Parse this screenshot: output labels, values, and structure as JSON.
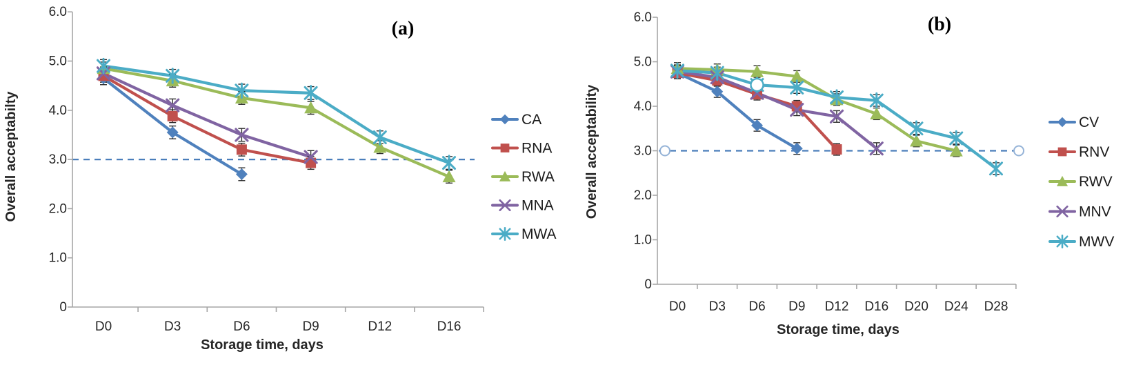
{
  "figure": {
    "background": "#ffffff"
  },
  "chart_data": [
    {
      "id": "a",
      "type": "line",
      "corner_label": "(a)",
      "xlabel": "Storage time, days",
      "ylabel": "Overall acceptabilty",
      "ylim": [
        0,
        6
      ],
      "ytick_labels": [
        "6.0",
        "5.0",
        "4.0",
        "3.0",
        "2.0",
        "1.0",
        "0"
      ],
      "ytick_values": [
        6,
        5,
        4,
        3,
        2,
        1,
        0
      ],
      "categories": [
        "D0",
        "D3",
        "D6",
        "D9",
        "D12",
        "D16"
      ],
      "grid": false,
      "legend_position": "right",
      "error_bar": 0.13,
      "threshold": {
        "value": 3.0,
        "style": "dashed",
        "color": "#4A7EBB",
        "end_circles": false
      },
      "series": [
        {
          "name": "CA",
          "color": "#4F81BD",
          "marker": "diamond",
          "values": [
            4.65,
            3.55,
            2.7,
            null,
            null,
            null
          ]
        },
        {
          "name": "RNA",
          "color": "#C0504D",
          "marker": "square",
          "values": [
            4.7,
            3.88,
            3.2,
            2.93,
            null,
            null
          ]
        },
        {
          "name": "RWA",
          "color": "#9BBB59",
          "marker": "triangle",
          "values": [
            4.85,
            4.6,
            4.25,
            4.05,
            3.25,
            2.65
          ]
        },
        {
          "name": "MNA",
          "color": "#8064A2",
          "marker": "x",
          "values": [
            4.75,
            4.1,
            3.5,
            3.05,
            null,
            null
          ]
        },
        {
          "name": "MWA",
          "color": "#4BACC6",
          "marker": "asterisk",
          "values": [
            4.9,
            4.7,
            4.4,
            4.35,
            3.45,
            2.93
          ]
        }
      ],
      "annotations": []
    },
    {
      "id": "b",
      "type": "line",
      "corner_label": "(b)",
      "xlabel": "Storage time, days",
      "ylabel": "Overall acceptability",
      "ylim": [
        0,
        6
      ],
      "ytick_labels": [
        "6.0",
        "5.0",
        "4.0",
        "3.0",
        "2.0",
        "1.0",
        "0"
      ],
      "ytick_values": [
        6,
        5,
        4,
        3,
        2,
        1,
        0
      ],
      "categories": [
        "D0",
        "D3",
        "D6",
        "D9",
        "D12",
        "D16",
        "D20",
        "D24",
        "D28"
      ],
      "grid": false,
      "legend_position": "right",
      "error_bar": 0.13,
      "threshold": {
        "value": 3.0,
        "style": "dashed",
        "color": "#4A7EBB",
        "end_circles": true
      },
      "series": [
        {
          "name": "CV",
          "color": "#4F81BD",
          "marker": "diamond",
          "values": [
            4.75,
            4.33,
            3.57,
            3.05,
            null,
            null,
            null,
            null,
            null
          ]
        },
        {
          "name": "RNV",
          "color": "#C0504D",
          "marker": "square",
          "values": [
            4.75,
            4.58,
            4.27,
            4.0,
            3.03,
            null,
            null,
            null,
            null
          ]
        },
        {
          "name": "RWV",
          "color": "#9BBB59",
          "marker": "triangle",
          "values": [
            4.85,
            4.82,
            4.78,
            4.67,
            4.15,
            3.83,
            3.22,
            3.0,
            null
          ]
        },
        {
          "name": "MNV",
          "color": "#8064A2",
          "marker": "x",
          "values": [
            4.78,
            4.65,
            4.3,
            3.92,
            3.77,
            3.05,
            null,
            null,
            null
          ]
        },
        {
          "name": "MWV",
          "color": "#4BACC6",
          "marker": "asterisk",
          "values": [
            4.8,
            4.75,
            4.48,
            4.42,
            4.2,
            4.13,
            3.5,
            3.28,
            2.6
          ]
        }
      ],
      "annotations": [
        {
          "type": "open-circle",
          "series": "MWV",
          "category": "D6",
          "value": 4.48,
          "color": "#4BACC6"
        }
      ]
    }
  ]
}
